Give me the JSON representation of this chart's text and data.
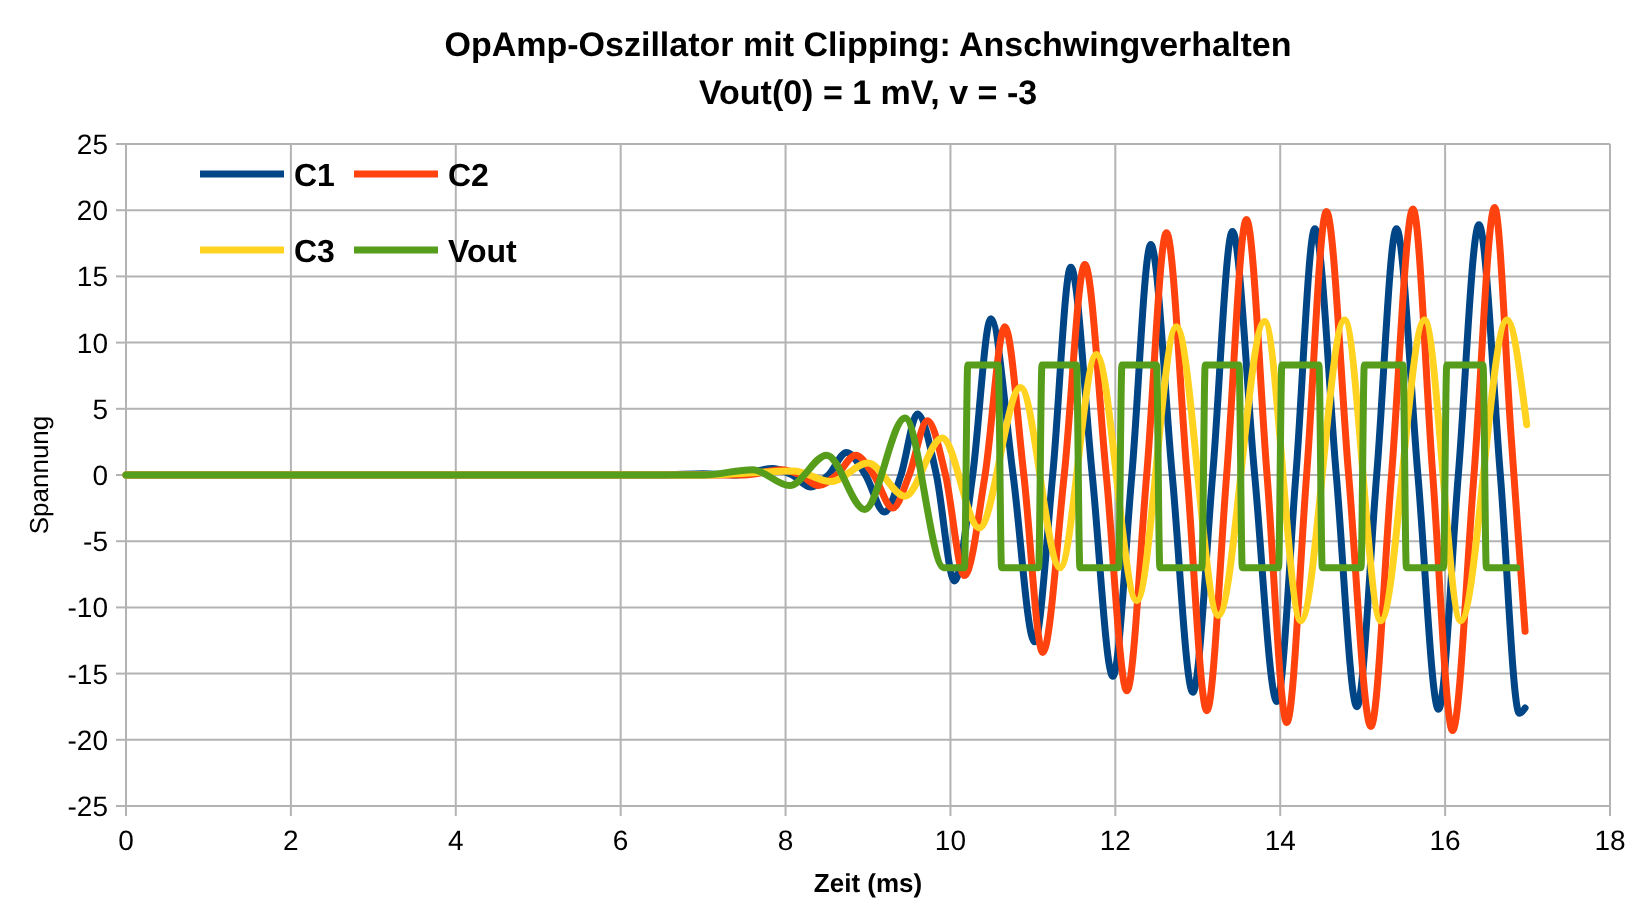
{
  "chart_data": {
    "type": "line",
    "title": "OpAmp-Oszillator mit Clipping: Anschwingverhalten",
    "subtitle": "Vout(0) = 1 mV, v = -3",
    "xlabel": "Zeit (ms)",
    "ylabel": "Spannung",
    "xlim": [
      0,
      18
    ],
    "xticks": [
      0,
      2,
      4,
      6,
      8,
      10,
      12,
      14,
      16,
      18
    ],
    "ylim": [
      -25,
      25
    ],
    "yticks": [
      -25,
      -20,
      -15,
      -10,
      -5,
      0,
      5,
      10,
      15,
      20,
      25
    ],
    "grid": true,
    "legend": "top left",
    "marker": "none",
    "line_style": "solid",
    "series": [
      {
        "name": "C1",
        "color": "#004586",
        "x": [
          0,
          6.5,
          7.0,
          7.4,
          7.85,
          8.08,
          8.3,
          8.52,
          8.74,
          8.97,
          9.2,
          9.4,
          9.6,
          9.83,
          10.05,
          10.27,
          10.49,
          10.76,
          11.02,
          11.24,
          11.46,
          11.72,
          11.97,
          12.2,
          12.43,
          12.69,
          12.94,
          13.18,
          13.42,
          13.69,
          13.96,
          14.19,
          14.42,
          14.68,
          14.93,
          15.17,
          15.41,
          15.67,
          15.92,
          16.16,
          16.41,
          16.67,
          16.9,
          16.97
        ],
        "values": [
          0,
          0,
          0.1,
          0,
          0.5,
          0,
          -0.9,
          0,
          1.7,
          0,
          -2.8,
          0,
          4.6,
          0,
          -8,
          0,
          11.8,
          0,
          -12.6,
          0,
          15.7,
          0,
          -15.2,
          0,
          17.4,
          0,
          -16.4,
          0,
          18.4,
          0,
          -17.1,
          0,
          18.6,
          0,
          -17.5,
          0,
          18.6,
          0,
          -17.7,
          0,
          18.9,
          0,
          -18,
          -17.6
        ]
      },
      {
        "name": "C2",
        "color": "#ff420e",
        "x": [
          0,
          6.6,
          7.5,
          7.95,
          8.18,
          8.4,
          8.62,
          8.85,
          9.07,
          9.3,
          9.5,
          9.72,
          9.94,
          10.17,
          10.42,
          10.66,
          10.89,
          11.12,
          11.38,
          11.63,
          11.89,
          12.14,
          12.38,
          12.62,
          12.87,
          13.11,
          13.35,
          13.59,
          13.84,
          14.08,
          14.32,
          14.56,
          14.83,
          15.1,
          15.35,
          15.61,
          15.85,
          16.09,
          16.35,
          16.6,
          16.8,
          16.97
        ],
        "values": [
          0,
          0,
          0,
          0.4,
          0,
          -0.8,
          0,
          1.5,
          0,
          -2.5,
          0,
          4.1,
          0,
          -7.6,
          0,
          11.2,
          0,
          -13.4,
          0,
          15.9,
          0,
          -16.3,
          0,
          18.3,
          0,
          -17.8,
          0,
          19.3,
          0,
          -18.7,
          0,
          19.9,
          0,
          -19,
          0,
          20.1,
          0,
          -19.3,
          0,
          20.2,
          3,
          -11.8
        ]
      },
      {
        "name": "C3",
        "color": "#ffd320",
        "x": [
          0,
          7.0,
          8.1,
          8.55,
          9.0,
          9.45,
          9.9,
          10.35,
          10.85,
          11.33,
          11.77,
          12.26,
          12.74,
          13.25,
          13.81,
          14.25,
          14.78,
          15.22,
          15.75,
          16.19,
          16.75,
          16.99
        ],
        "values": [
          0,
          0,
          0.3,
          -0.5,
          0.9,
          -1.6,
          2.8,
          -4,
          6.6,
          -7,
          9.1,
          -9.5,
          11.2,
          -10.6,
          11.6,
          -11,
          11.7,
          -11,
          11.7,
          -11,
          11.7,
          3.8
        ]
      },
      {
        "name": "Vout",
        "color": "#579d1c",
        "x": [
          0,
          7.0,
          7.6,
          8.05,
          8.5,
          8.96,
          9.45,
          9.92,
          10.17,
          10.21,
          10.58,
          10.62,
          11.07,
          11.11,
          11.53,
          11.57,
          12.04,
          12.08,
          12.5,
          12.54,
          13.05,
          13.09,
          13.5,
          13.54,
          13.98,
          14.02,
          14.47,
          14.51,
          14.98,
          15.02,
          15.49,
          15.53,
          15.98,
          16.02,
          16.46,
          16.5,
          16.87
        ],
        "values": [
          0,
          0,
          0.4,
          -0.8,
          1.5,
          -2.6,
          4.3,
          -7,
          -7,
          8.3,
          8.3,
          -7,
          -7,
          8.3,
          8.3,
          -7,
          -7,
          8.3,
          8.3,
          -7,
          -7,
          8.3,
          8.3,
          -7,
          -7,
          8.3,
          8.3,
          -7,
          -7,
          8.3,
          8.3,
          -7,
          -7,
          8.3,
          8.3,
          -7,
          -7
        ]
      }
    ]
  }
}
